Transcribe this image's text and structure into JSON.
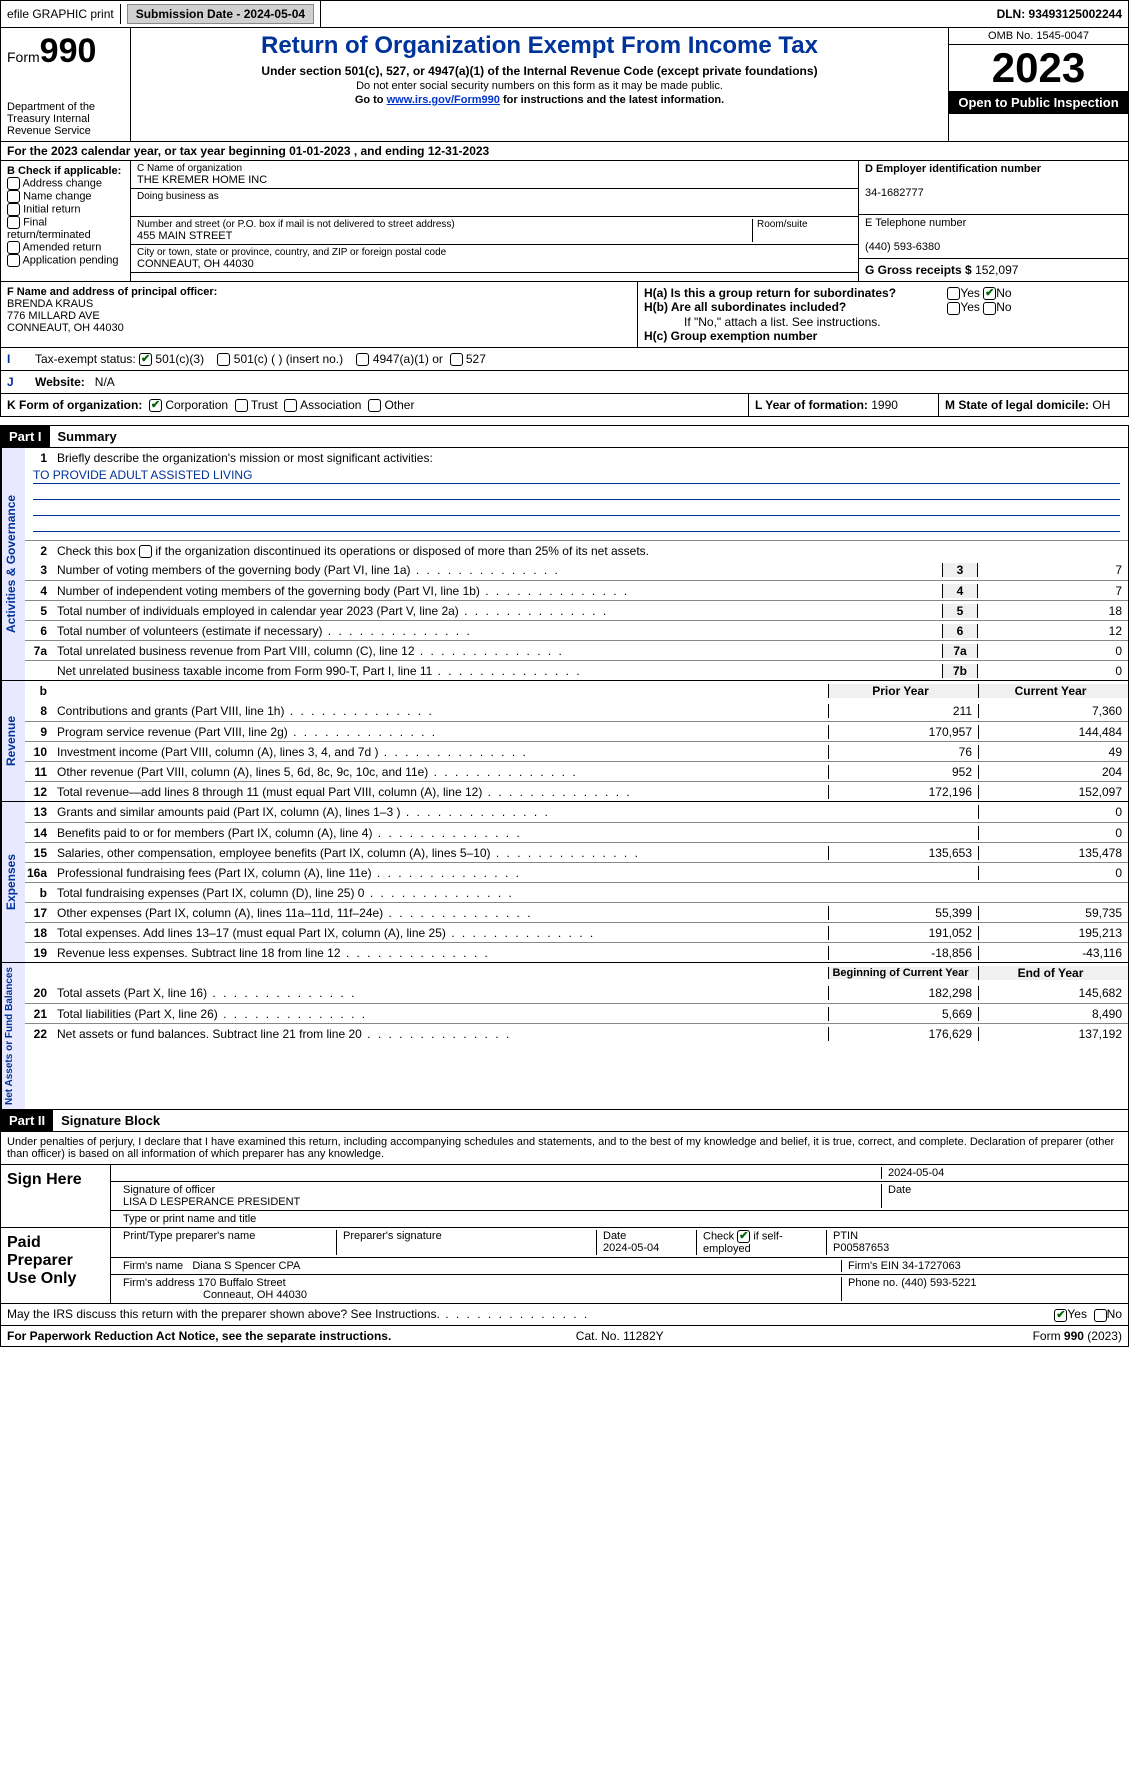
{
  "topbar": {
    "efile": "efile GRAPHIC print",
    "submission": "Submission Date - 2024-05-04",
    "dln": "DLN: 93493125002244"
  },
  "header": {
    "form": "Form",
    "formnum": "990",
    "dept": "Department of the Treasury Internal Revenue Service",
    "title": "Return of Organization Exempt From Income Tax",
    "sub": "Under section 501(c), 527, or 4947(a)(1) of the Internal Revenue Code (except private foundations)",
    "ssn": "Do not enter social security numbers on this form as it may be made public.",
    "goto": "Go to ",
    "gotolink": "www.irs.gov/Form990",
    "gotorest": " for instructions and the latest information.",
    "omb": "OMB No. 1545-0047",
    "year": "2023",
    "inspect": "Open to Public Inspection"
  },
  "lineA": "For the 2023 calendar year, or tax year beginning 01-01-2023    , and ending 12-31-2023",
  "boxB": {
    "title": "B Check if applicable:",
    "opts": [
      "Address change",
      "Name change",
      "Initial return",
      "Final return/terminated",
      "Amended return",
      "Application pending"
    ]
  },
  "boxC": {
    "namelbl": "C Name of organization",
    "name": "THE KREMER HOME INC",
    "dbalbl": "Doing business as",
    "dba": "",
    "addrlbl": "Number and street (or P.O. box if mail is not delivered to street address)",
    "addr": "455 MAIN STREET",
    "roomlbl": "Room/suite",
    "citylbl": "City or town, state or province, country, and ZIP or foreign postal code",
    "city": "CONNEAUT, OH  44030"
  },
  "boxD": {
    "lbl": "D Employer identification number",
    "val": "34-1682777"
  },
  "boxE": {
    "lbl": "E Telephone number",
    "val": "(440) 593-6380"
  },
  "boxG": {
    "lbl": "G Gross receipts $ ",
    "val": "152,097"
  },
  "boxF": {
    "lbl": "F  Name and address of principal officer:",
    "name": "BRENDA KRAUS",
    "addr": "776 MILLARD AVE",
    "city": "CONNEAUT, OH  44030"
  },
  "boxH": {
    "a": "H(a)  Is this a group return for subordinates?",
    "b": "H(b)  Are all subordinates included?",
    "bnote": "If \"No,\" attach a list. See instructions.",
    "c": "H(c)  Group exemption number "
  },
  "boxI": {
    "lbl": "Tax-exempt status:",
    "o1": "501(c)(3)",
    "o2": "501(c) (  ) (insert no.)",
    "o3": "4947(a)(1) or",
    "o4": "527"
  },
  "boxJ": {
    "lbl": "Website: ",
    "val": "N/A"
  },
  "boxK": {
    "lbl": "K Form of organization:",
    "opts": [
      "Corporation",
      "Trust",
      "Association",
      "Other"
    ]
  },
  "boxL": {
    "lbl": "L Year of formation: ",
    "val": "1990"
  },
  "boxM": {
    "lbl": "M State of legal domicile: ",
    "val": "OH"
  },
  "part1": {
    "hdr": "Part I",
    "title": "Summary",
    "l1lbl": "Briefly describe the organization's mission or most significant activities:",
    "l1val": "TO PROVIDE ADULT ASSISTED LIVING",
    "l2": "Check this box      if the organization discontinued its operations or disposed of more than 25% of its net assets.",
    "gov": [
      {
        "n": "3",
        "d": "Number of voting members of the governing body (Part VI, line 1a)",
        "b": "3",
        "v": "7"
      },
      {
        "n": "4",
        "d": "Number of independent voting members of the governing body (Part VI, line 1b)",
        "b": "4",
        "v": "7"
      },
      {
        "n": "5",
        "d": "Total number of individuals employed in calendar year 2023 (Part V, line 2a)",
        "b": "5",
        "v": "18"
      },
      {
        "n": "6",
        "d": "Total number of volunteers (estimate if necessary)",
        "b": "6",
        "v": "12"
      },
      {
        "n": "7a",
        "d": "Total unrelated business revenue from Part VIII, column (C), line 12",
        "b": "7a",
        "v": "0"
      },
      {
        "n": "",
        "d": "Net unrelated business taxable income from Form 990-T, Part I, line 11",
        "b": "7b",
        "v": "0"
      }
    ],
    "colhdr1": "Prior Year",
    "colhdr2": "Current Year",
    "rev": [
      {
        "n": "8",
        "d": "Contributions and grants (Part VIII, line 1h)",
        "p": "211",
        "c": "7,360"
      },
      {
        "n": "9",
        "d": "Program service revenue (Part VIII, line 2g)",
        "p": "170,957",
        "c": "144,484"
      },
      {
        "n": "10",
        "d": "Investment income (Part VIII, column (A), lines 3, 4, and 7d )",
        "p": "76",
        "c": "49"
      },
      {
        "n": "11",
        "d": "Other revenue (Part VIII, column (A), lines 5, 6d, 8c, 9c, 10c, and 11e)",
        "p": "952",
        "c": "204"
      },
      {
        "n": "12",
        "d": "Total revenue—add lines 8 through 11 (must equal Part VIII, column (A), line 12)",
        "p": "172,196",
        "c": "152,097"
      }
    ],
    "exp": [
      {
        "n": "13",
        "d": "Grants and similar amounts paid (Part IX, column (A), lines 1–3 )",
        "p": "",
        "c": "0"
      },
      {
        "n": "14",
        "d": "Benefits paid to or for members (Part IX, column (A), line 4)",
        "p": "",
        "c": "0"
      },
      {
        "n": "15",
        "d": "Salaries, other compensation, employee benefits (Part IX, column (A), lines 5–10)",
        "p": "135,653",
        "c": "135,478"
      },
      {
        "n": "16a",
        "d": "Professional fundraising fees (Part IX, column (A), line 11e)",
        "p": "",
        "c": "0"
      },
      {
        "n": "b",
        "d": "Total fundraising expenses (Part IX, column (D), line 25) 0",
        "p": "shade",
        "c": "shade"
      },
      {
        "n": "17",
        "d": "Other expenses (Part IX, column (A), lines 11a–11d, 11f–24e)",
        "p": "55,399",
        "c": "59,735"
      },
      {
        "n": "18",
        "d": "Total expenses. Add lines 13–17 (must equal Part IX, column (A), line 25)",
        "p": "191,052",
        "c": "195,213"
      },
      {
        "n": "19",
        "d": "Revenue less expenses. Subtract line 18 from line 12",
        "p": "-18,856",
        "c": "-43,116"
      }
    ],
    "colhdr3": "Beginning of Current Year",
    "colhdr4": "End of Year",
    "net": [
      {
        "n": "20",
        "d": "Total assets (Part X, line 16)",
        "p": "182,298",
        "c": "145,682"
      },
      {
        "n": "21",
        "d": "Total liabilities (Part X, line 26)",
        "p": "5,669",
        "c": "8,490"
      },
      {
        "n": "22",
        "d": "Net assets or fund balances. Subtract line 21 from line 20",
        "p": "176,629",
        "c": "137,192"
      }
    ],
    "vlabels": {
      "gov": "Activities & Governance",
      "rev": "Revenue",
      "exp": "Expenses",
      "net": "Net Assets or Fund Balances"
    }
  },
  "part2": {
    "hdr": "Part II",
    "title": "Signature Block",
    "decl": "Under penalties of perjury, I declare that I have examined this return, including accompanying schedules and statements, and to the best of my knowledge and belief, it is true, correct, and complete. Declaration of preparer (other than officer) is based on all information of which preparer has any knowledge.",
    "signhere": "Sign Here",
    "sigdate": "2024-05-04",
    "siglbl": "Signature of officer",
    "signame": "LISA D LESPERANCE PRESIDENT",
    "typelbl": "Type or print name and title",
    "datelbl": "Date",
    "paid": "Paid Preparer Use Only",
    "prep": {
      "namelbl": "Print/Type preparer's name",
      "siglbl": "Preparer's signature",
      "datelbl": "Date",
      "date": "2024-05-04",
      "checklbl": "Check",
      "selflbl": "if self-employed",
      "ptinlbl": "PTIN",
      "ptin": "P00587653",
      "firmlbl": "Firm's name  ",
      "firm": "Diana S Spencer CPA",
      "einlbl": "Firm's EIN  ",
      "ein": "34-1727063",
      "addrlbl": "Firm's address ",
      "addr": "170 Buffalo Street",
      "city": "Conneaut, OH  44030",
      "phonelbl": "Phone no. ",
      "phone": "(440) 593-5221"
    },
    "discuss": "May the IRS discuss this return with the preparer shown above? See Instructions."
  },
  "footer": {
    "pra": "For Paperwork Reduction Act Notice, see the separate instructions.",
    "cat": "Cat. No. 11282Y",
    "form": "Form 990 (2023)"
  }
}
